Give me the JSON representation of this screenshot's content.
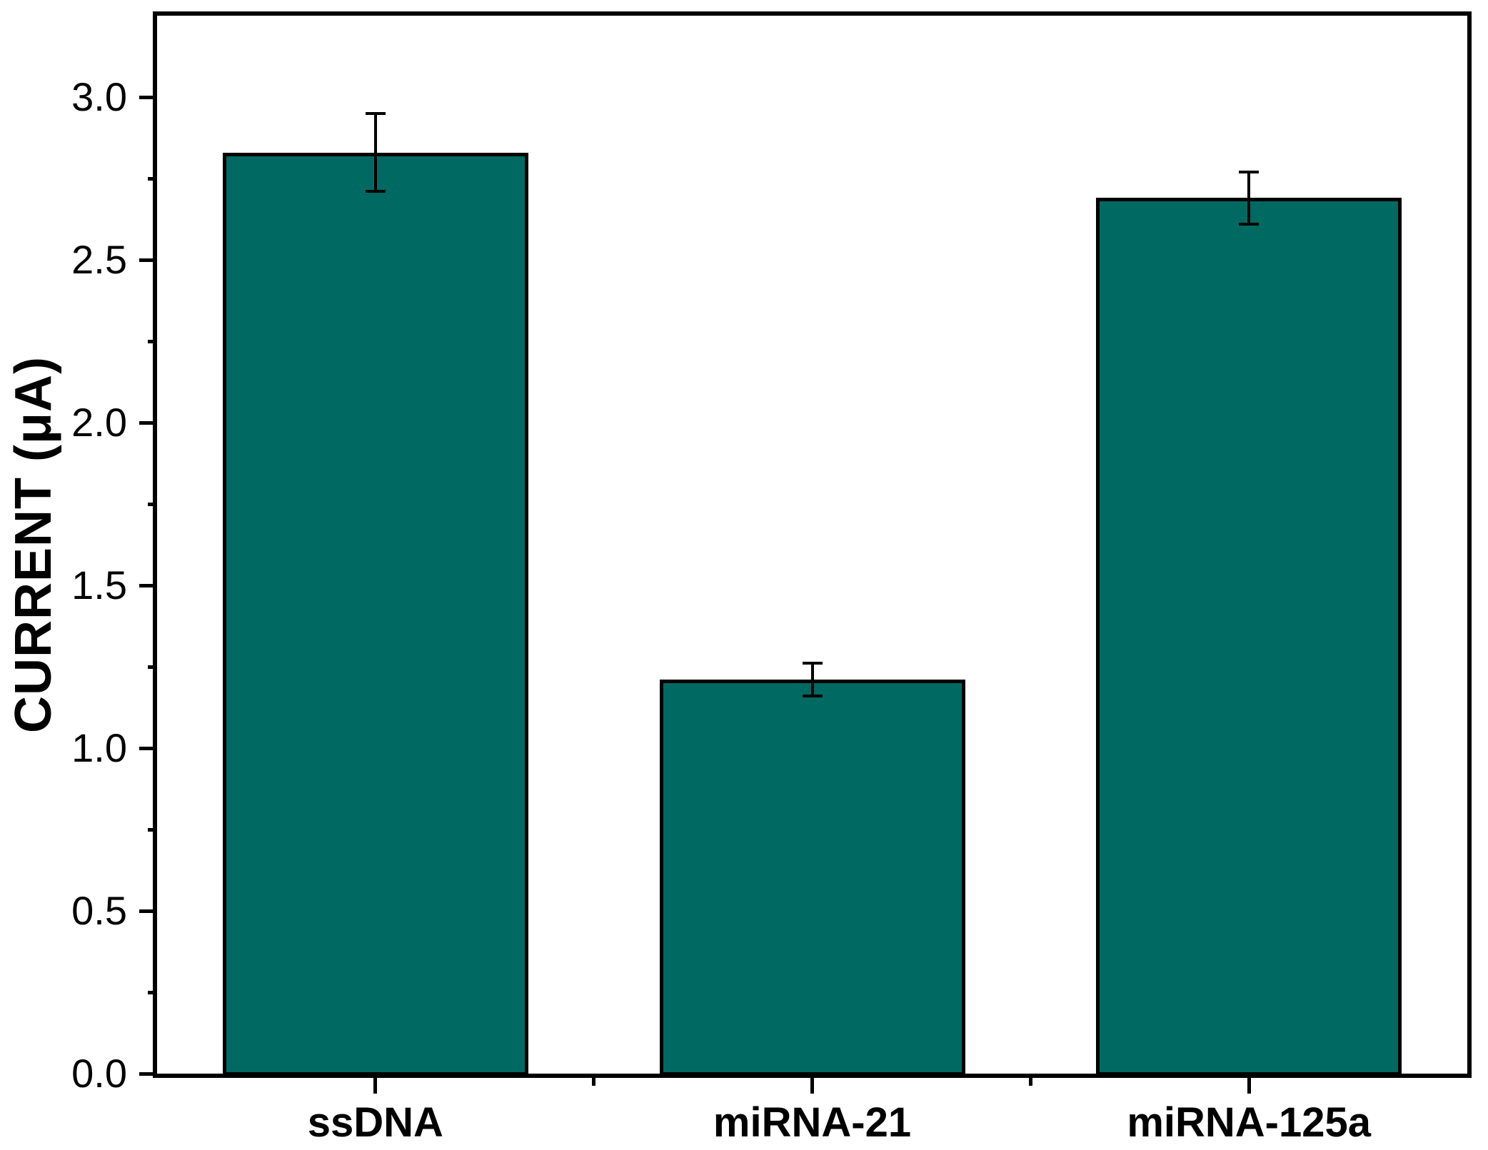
{
  "chart_data": {
    "type": "bar",
    "title": "",
    "categories": [
      "ssDNA",
      "miRNA-21",
      "miRNA-125a"
    ],
    "values": [
      2.83,
      1.21,
      2.69
    ],
    "errors": [
      0.12,
      0.05,
      0.08
    ],
    "xlabel": "",
    "ylabel": "CURRENT (μA)",
    "ylim": [
      0,
      3.25
    ],
    "ytick_major_step": 0.5,
    "ytick_minor_step": 0.25,
    "ytick_labels": [
      "0.0",
      "0.5",
      "1.0",
      "1.5",
      "2.0",
      "2.5",
      "3.0"
    ],
    "bar_color": "#006A62",
    "bar_border_color": "#000000",
    "error_bar_color": "#000000",
    "bar_width_fraction": 0.7,
    "grid": false,
    "legend": null,
    "frame": "full-box",
    "tick_direction": "out"
  }
}
